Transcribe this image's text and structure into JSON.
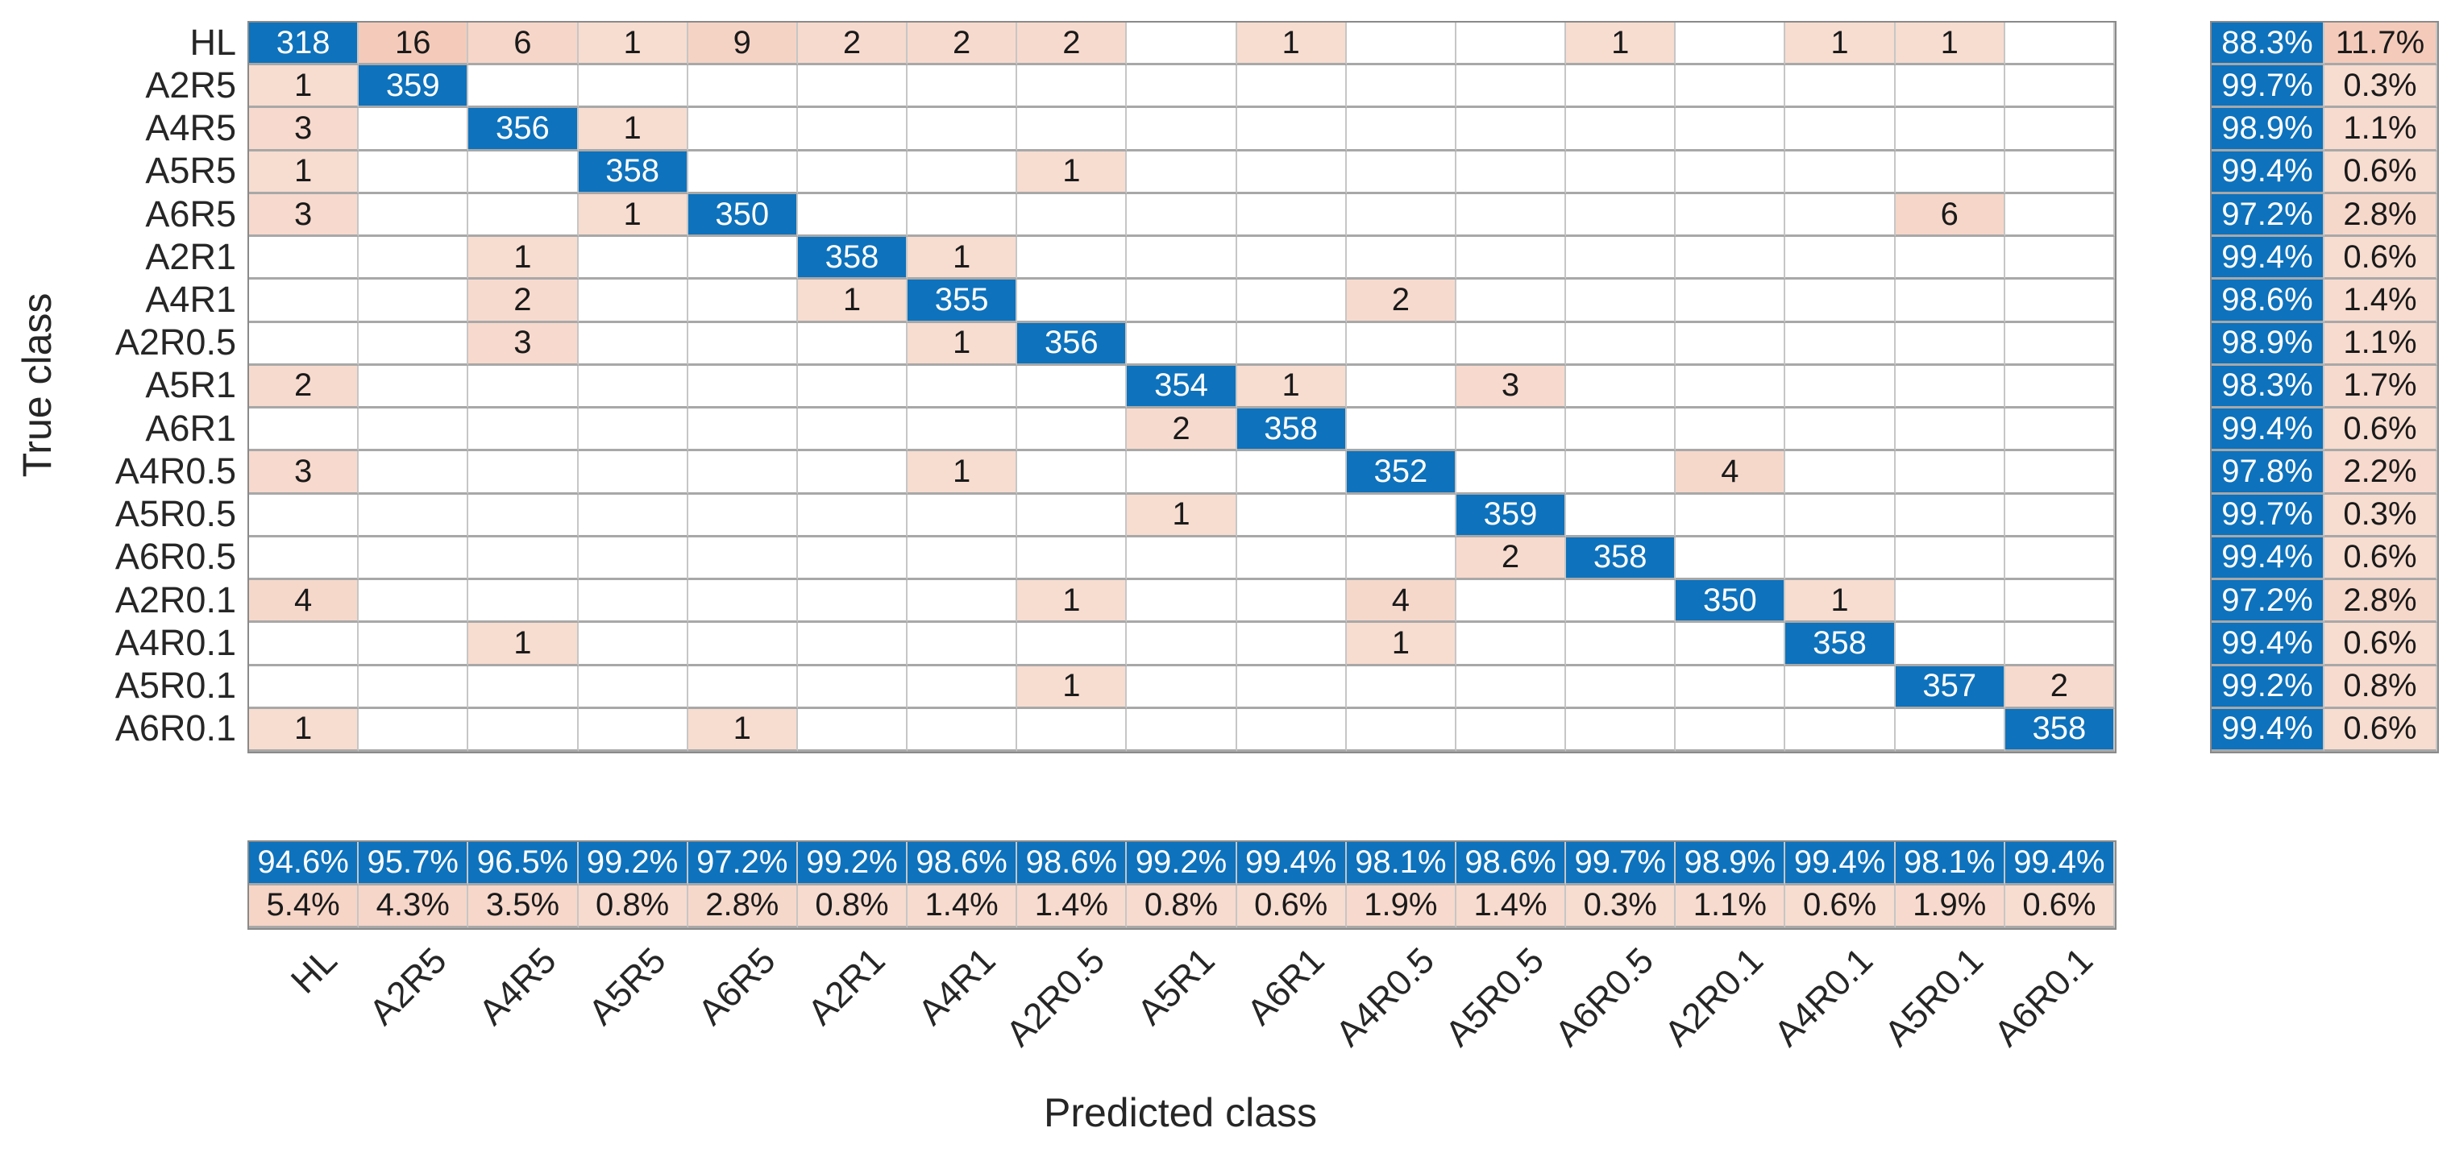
{
  "chart_data": {
    "type": "heatmap",
    "subtype": "confusion-matrix",
    "xlabel": "Predicted class",
    "ylabel": "True class",
    "classes": [
      "HL",
      "A2R5",
      "A4R5",
      "A5R5",
      "A6R5",
      "A2R1",
      "A4R1",
      "A2R0.5",
      "A5R1",
      "A6R1",
      "A4R0.5",
      "A5R0.5",
      "A6R0.5",
      "A2R0.1",
      "A4R0.1",
      "A5R0.1",
      "A6R0.1"
    ],
    "matrix": [
      [
        318,
        16,
        6,
        1,
        9,
        2,
        2,
        2,
        0,
        1,
        0,
        0,
        1,
        0,
        1,
        1,
        0
      ],
      [
        1,
        359,
        0,
        0,
        0,
        0,
        0,
        0,
        0,
        0,
        0,
        0,
        0,
        0,
        0,
        0,
        0
      ],
      [
        3,
        0,
        356,
        1,
        0,
        0,
        0,
        0,
        0,
        0,
        0,
        0,
        0,
        0,
        0,
        0,
        0
      ],
      [
        1,
        0,
        0,
        358,
        0,
        0,
        0,
        1,
        0,
        0,
        0,
        0,
        0,
        0,
        0,
        0,
        0
      ],
      [
        3,
        0,
        0,
        1,
        350,
        0,
        0,
        0,
        0,
        0,
        0,
        0,
        0,
        0,
        0,
        6,
        0
      ],
      [
        0,
        0,
        1,
        0,
        0,
        358,
        1,
        0,
        0,
        0,
        0,
        0,
        0,
        0,
        0,
        0,
        0
      ],
      [
        0,
        0,
        2,
        0,
        0,
        1,
        355,
        0,
        0,
        0,
        2,
        0,
        0,
        0,
        0,
        0,
        0
      ],
      [
        0,
        0,
        3,
        0,
        0,
        0,
        1,
        356,
        0,
        0,
        0,
        0,
        0,
        0,
        0,
        0,
        0
      ],
      [
        2,
        0,
        0,
        0,
        0,
        0,
        0,
        0,
        354,
        1,
        0,
        3,
        0,
        0,
        0,
        0,
        0
      ],
      [
        0,
        0,
        0,
        0,
        0,
        0,
        0,
        0,
        2,
        358,
        0,
        0,
        0,
        0,
        0,
        0,
        0
      ],
      [
        3,
        0,
        0,
        0,
        0,
        0,
        1,
        0,
        0,
        0,
        352,
        0,
        0,
        4,
        0,
        0,
        0
      ],
      [
        0,
        0,
        0,
        0,
        0,
        0,
        0,
        0,
        1,
        0,
        0,
        359,
        0,
        0,
        0,
        0,
        0
      ],
      [
        0,
        0,
        0,
        0,
        0,
        0,
        0,
        0,
        0,
        0,
        0,
        2,
        358,
        0,
        0,
        0,
        0
      ],
      [
        4,
        0,
        0,
        0,
        0,
        0,
        0,
        1,
        0,
        0,
        4,
        0,
        0,
        350,
        1,
        0,
        0
      ],
      [
        0,
        0,
        1,
        0,
        0,
        0,
        0,
        0,
        0,
        0,
        1,
        0,
        0,
        0,
        358,
        0,
        0
      ],
      [
        0,
        0,
        0,
        0,
        0,
        0,
        0,
        1,
        0,
        0,
        0,
        0,
        0,
        0,
        0,
        357,
        2
      ],
      [
        1,
        0,
        0,
        0,
        1,
        0,
        0,
        0,
        0,
        0,
        0,
        0,
        0,
        0,
        0,
        0,
        358
      ]
    ],
    "row_summary": [
      [
        88.3,
        11.7
      ],
      [
        99.7,
        0.3
      ],
      [
        98.9,
        1.1
      ],
      [
        99.4,
        0.6
      ],
      [
        97.2,
        2.8
      ],
      [
        99.4,
        0.6
      ],
      [
        98.6,
        1.4
      ],
      [
        98.9,
        1.1
      ],
      [
        98.3,
        1.7
      ],
      [
        99.4,
        0.6
      ],
      [
        97.8,
        2.2
      ],
      [
        99.7,
        0.3
      ],
      [
        99.4,
        0.6
      ],
      [
        97.2,
        2.8
      ],
      [
        99.4,
        0.6
      ],
      [
        99.2,
        0.8
      ],
      [
        99.4,
        0.6
      ]
    ],
    "col_summary": [
      [
        94.6,
        5.4
      ],
      [
        95.7,
        4.3
      ],
      [
        96.5,
        3.5
      ],
      [
        99.2,
        0.8
      ],
      [
        97.2,
        2.8
      ],
      [
        99.2,
        0.8
      ],
      [
        98.6,
        1.4
      ],
      [
        98.6,
        1.4
      ],
      [
        99.2,
        0.8
      ],
      [
        99.4,
        0.6
      ],
      [
        98.1,
        1.9
      ],
      [
        98.6,
        1.4
      ],
      [
        99.7,
        0.3
      ],
      [
        98.9,
        1.1
      ],
      [
        99.4,
        0.6
      ],
      [
        98.1,
        1.9
      ],
      [
        99.4,
        0.6
      ]
    ],
    "colors": {
      "diagonal": "#0e72bc",
      "off_diagonal": "#d95319",
      "grid_line": "#a8a8a8",
      "text": "#1a1a1a",
      "text_on_diagonal": "#ffffff"
    },
    "grid": true,
    "legend_position": "none"
  }
}
